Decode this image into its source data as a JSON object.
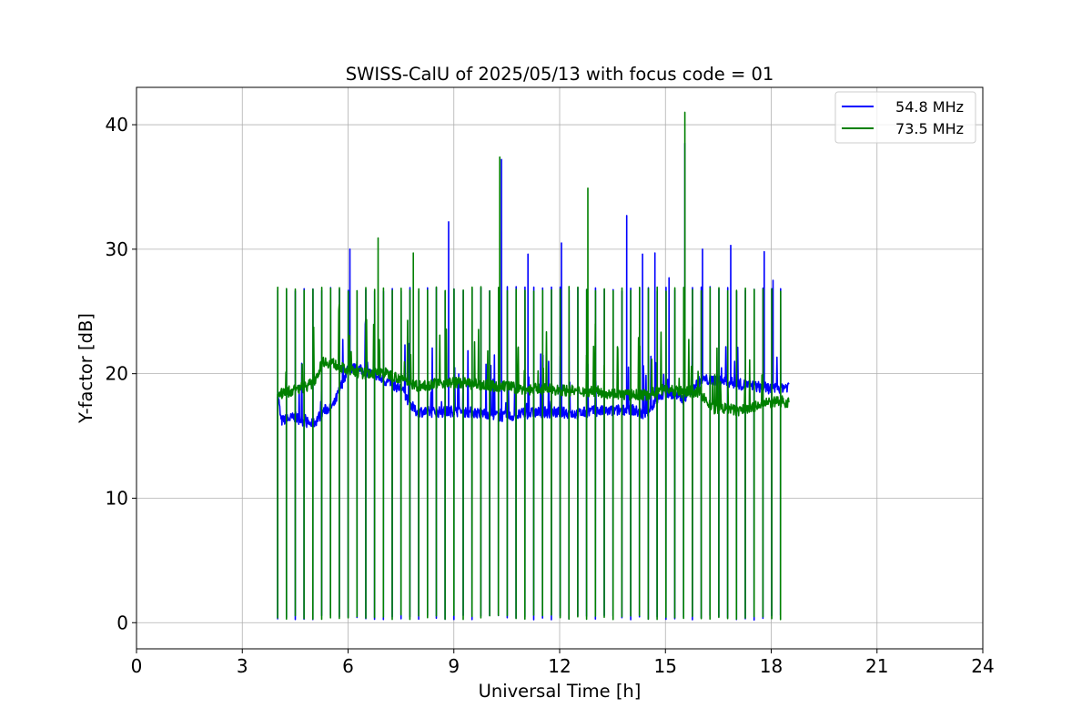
{
  "chart_data": {
    "type": "line",
    "title": "SWISS-CalU of 2025/05/13 with focus code = 01",
    "xlabel": "Universal Time [h]",
    "ylabel": "Y-factor [dB]",
    "xlim": [
      0,
      24
    ],
    "ylim": [
      -2.1,
      43
    ],
    "xticks": [
      0,
      3,
      6,
      9,
      12,
      15,
      18,
      21,
      24
    ],
    "xtick_labels": [
      "0",
      "3",
      "6",
      "9",
      "12",
      "15",
      "18",
      "21",
      "24"
    ],
    "yticks": [
      0,
      10,
      20,
      30,
      40
    ],
    "ytick_labels": [
      "0",
      "10",
      "20",
      "30",
      "40"
    ],
    "grid": true,
    "legend_position": "top-right",
    "series": [
      {
        "name": "54.8 MHz",
        "color": "#0000ff",
        "baseline": [
          [
            4.0,
            18.6
          ],
          [
            4.1,
            16.2
          ],
          [
            4.5,
            16.5
          ],
          [
            5.0,
            15.9
          ],
          [
            5.3,
            17.0
          ],
          [
            5.6,
            17.5
          ],
          [
            6.0,
            20.5
          ],
          [
            6.5,
            20.2
          ],
          [
            7.0,
            19.5
          ],
          [
            7.5,
            18.8
          ],
          [
            7.9,
            17.0
          ],
          [
            8.5,
            16.9
          ],
          [
            9.0,
            17.0
          ],
          [
            9.5,
            16.9
          ],
          [
            10.0,
            16.8
          ],
          [
            10.5,
            16.5
          ],
          [
            11.0,
            16.8
          ],
          [
            11.5,
            16.9
          ],
          [
            12.0,
            16.9
          ],
          [
            12.5,
            16.8
          ],
          [
            13.0,
            17.0
          ],
          [
            13.5,
            17.0
          ],
          [
            14.0,
            17.2
          ],
          [
            14.4,
            16.7
          ],
          [
            15.0,
            18.5
          ],
          [
            15.5,
            18.0
          ],
          [
            16.0,
            19.5
          ],
          [
            16.5,
            19.5
          ],
          [
            17.0,
            19.2
          ],
          [
            17.5,
            19.0
          ],
          [
            18.0,
            18.8
          ],
          [
            18.5,
            19.0
          ]
        ],
        "spikes": [
          [
            6.05,
            30.0
          ],
          [
            8.85,
            32.2
          ],
          [
            10.35,
            37.2
          ],
          [
            11.1,
            29.6
          ],
          [
            12.05,
            30.5
          ],
          [
            13.9,
            32.7
          ],
          [
            14.35,
            29.6
          ],
          [
            14.7,
            29.7
          ],
          [
            15.1,
            27.7
          ],
          [
            15.55,
            38.5
          ],
          [
            16.05,
            30.0
          ],
          [
            16.85,
            30.3
          ],
          [
            17.8,
            29.8
          ],
          [
            18.05,
            27.5
          ]
        ]
      },
      {
        "name": "73.5 MHz",
        "color": "#008000",
        "baseline": [
          [
            4.0,
            18.3
          ],
          [
            4.5,
            18.7
          ],
          [
            5.0,
            19.2
          ],
          [
            5.3,
            21.0
          ],
          [
            5.6,
            20.8
          ],
          [
            6.0,
            20.2
          ],
          [
            6.5,
            20.0
          ],
          [
            7.0,
            20.1
          ],
          [
            7.5,
            19.6
          ],
          [
            8.0,
            19.0
          ],
          [
            8.5,
            19.2
          ],
          [
            9.0,
            19.3
          ],
          [
            9.5,
            19.2
          ],
          [
            10.0,
            19.0
          ],
          [
            10.5,
            19.0
          ],
          [
            11.0,
            18.7
          ],
          [
            11.5,
            18.8
          ],
          [
            12.0,
            18.7
          ],
          [
            12.5,
            18.6
          ],
          [
            13.0,
            18.6
          ],
          [
            13.5,
            18.4
          ],
          [
            14.0,
            18.3
          ],
          [
            14.5,
            18.3
          ],
          [
            15.0,
            18.8
          ],
          [
            15.5,
            18.5
          ],
          [
            16.0,
            18.5
          ],
          [
            16.3,
            17.2
          ],
          [
            16.8,
            17.2
          ],
          [
            17.0,
            17.0
          ],
          [
            17.5,
            17.3
          ],
          [
            18.0,
            17.7
          ],
          [
            18.5,
            17.7
          ]
        ],
        "spikes": [
          [
            6.85,
            30.9
          ],
          [
            7.85,
            29.7
          ],
          [
            10.3,
            37.4
          ],
          [
            12.8,
            34.9
          ],
          [
            15.55,
            41.0
          ]
        ]
      }
    ]
  }
}
